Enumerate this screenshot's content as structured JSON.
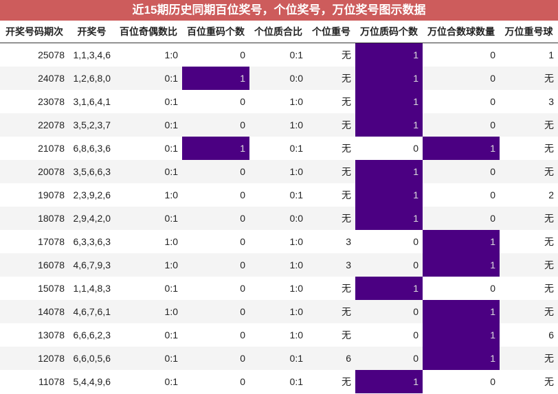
{
  "title": "近15期历史同期百位奖号，个位奖号，万位奖号图示数据",
  "table": {
    "headers": [
      "开奖号码期次",
      "开奖号",
      "百位奇偶数比",
      "百位重码个数",
      "个位质合比",
      "个位重号",
      "万位质码个数",
      "万位合数球数量",
      "万位重号球"
    ],
    "rows": [
      [
        25078,
        "1,1,3,4,6",
        "1:0",
        0,
        "0:1",
        "无",
        1,
        0,
        1
      ],
      [
        24078,
        "1,2,6,8,0",
        "0:1",
        1,
        "0:0",
        "无",
        1,
        0,
        "无"
      ],
      [
        23078,
        "3,1,6,4,1",
        "0:1",
        0,
        "1:0",
        "无",
        1,
        0,
        3
      ],
      [
        22078,
        "3,5,2,3,7",
        "0:1",
        0,
        "1:0",
        "无",
        1,
        0,
        "无"
      ],
      [
        21078,
        "6,8,6,3,6",
        "0:1",
        1,
        "0:1",
        "无",
        0,
        1,
        "无"
      ],
      [
        20078,
        "3,5,6,6,3",
        "0:1",
        0,
        "1:0",
        "无",
        1,
        0,
        "无"
      ],
      [
        19078,
        "2,3,9,2,6",
        "1:0",
        0,
        "0:1",
        "无",
        1,
        0,
        2
      ],
      [
        18078,
        "2,9,4,2,0",
        "0:1",
        0,
        "0:0",
        "无",
        1,
        0,
        "无"
      ],
      [
        17078,
        "6,3,3,6,3",
        "1:0",
        0,
        "1:0",
        3,
        0,
        1,
        "无"
      ],
      [
        16078,
        "4,6,7,9,3",
        "1:0",
        0,
        "1:0",
        3,
        0,
        1,
        "无"
      ],
      [
        15078,
        "1,1,4,8,3",
        "0:1",
        0,
        "1:0",
        "无",
        1,
        0,
        "无"
      ],
      [
        14078,
        "4,6,7,6,1",
        "1:0",
        0,
        "1:0",
        "无",
        0,
        1,
        "无"
      ],
      [
        13078,
        "6,6,6,2,3",
        "0:1",
        0,
        "1:0",
        "无",
        0,
        1,
        6
      ],
      [
        12078,
        "6,6,0,5,6",
        "0:1",
        0,
        "0:1",
        6,
        0,
        1,
        "无"
      ],
      [
        11078,
        "5,4,4,9,6",
        "0:1",
        0,
        "0:1",
        "无",
        1,
        0,
        "无"
      ]
    ]
  }
}
